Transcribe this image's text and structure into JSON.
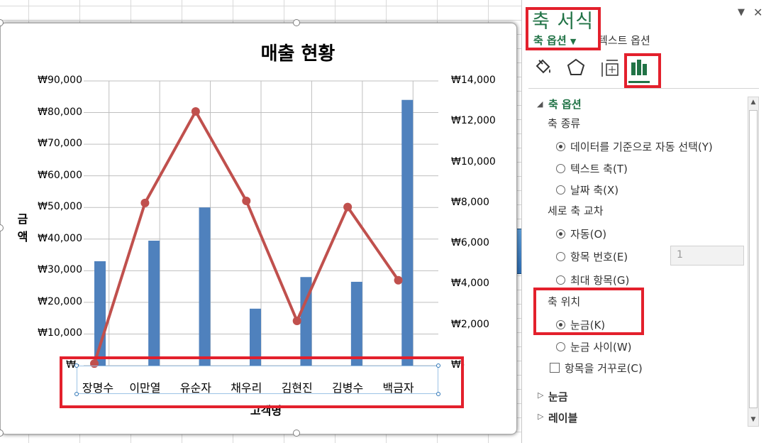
{
  "chart_data": {
    "type": "bar",
    "title": "매출 현황",
    "xlabel": "고객명",
    "ylabel": "금액",
    "categories": [
      "장명수",
      "이만열",
      "유순자",
      "채우리",
      "김현진",
      "김병수",
      "백금자"
    ],
    "series": [
      {
        "type": "bar",
        "axis": "left",
        "color": "#4f81bd",
        "values": [
          33000,
          39500,
          50000,
          18000,
          28000,
          26500,
          84000
        ]
      },
      {
        "type": "line",
        "axis": "right",
        "color": "#c0504d",
        "values": [
          100,
          8000,
          12500,
          8100,
          2200,
          7800,
          4200
        ]
      }
    ],
    "y_left": {
      "min": 0,
      "max": 90000,
      "step": 10000,
      "tick_labels": [
        "₩-",
        "₩10,000",
        "₩20,000",
        "₩30,000",
        "₩40,000",
        "₩50,000",
        "₩60,000",
        "₩70,000",
        "₩80,000",
        "₩90,000"
      ]
    },
    "y_right": {
      "min": 0,
      "max": 14000,
      "step": 2000,
      "tick_labels": [
        "₩-",
        "₩2,000",
        "₩4,000",
        "₩6,000",
        "₩8,000",
        "₩10,000",
        "₩12,000",
        "₩14,000"
      ]
    },
    "grid": true
  },
  "pane": {
    "title": "축 서식",
    "tab_axis_options": "축 옵션",
    "tab_text_options": "텍스트 옵션",
    "icons": [
      "fill-line-icon",
      "effects-icon",
      "size-properties-icon",
      "axis-options-icon"
    ],
    "section_axis_options": "축 옵션",
    "axis_type": {
      "label": "축 종류",
      "options": [
        "데이터를 기준으로 자동 선택(Y)",
        "텍스트 축(T)",
        "날짜 축(X)"
      ],
      "selected": 0
    },
    "vertical_cross": {
      "label": "세로 축 교차",
      "options": [
        "자동(O)",
        "항목 번호(E)",
        "최대 항목(G)"
      ],
      "selected": 0,
      "category_number_value": "1"
    },
    "axis_position": {
      "label": "축 위치",
      "options": [
        "눈금(K)",
        "눈금 사이(W)"
      ],
      "selected": 0
    },
    "reverse_order": "항목을 거꾸로(C)",
    "reverse_checked": false,
    "section_tick_marks": "눈금",
    "section_labels": "레이블"
  },
  "colors": {
    "accent": "#217346",
    "highlight": "#e3202c",
    "bar": "#4f81bd",
    "line": "#c0504d"
  }
}
